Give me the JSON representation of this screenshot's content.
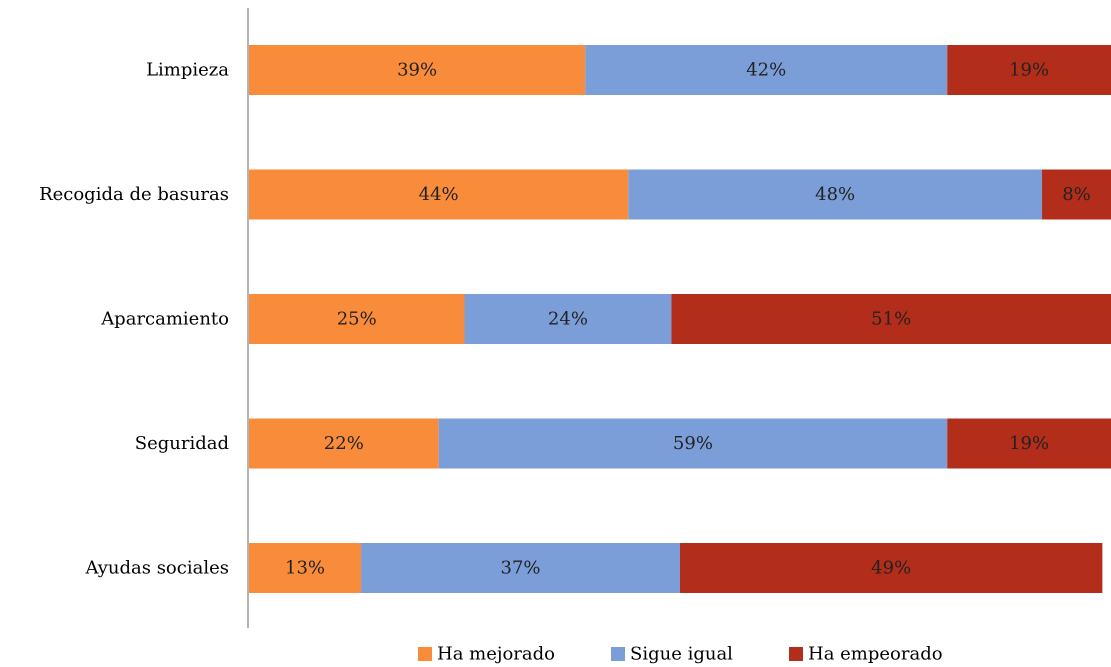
{
  "chart_data": {
    "type": "bar",
    "orientation": "horizontal",
    "stacked": true,
    "percent_stacked": true,
    "categories": [
      "Limpieza",
      "Recogida de basuras",
      "Aparcamiento",
      "Seguridad",
      "Ayudas sociales"
    ],
    "series": [
      {
        "name": "Ha mejorado",
        "color": "#F98C3A",
        "values": [
          39,
          44,
          25,
          22,
          13
        ],
        "labels": [
          "39%",
          "44%",
          "25%",
          "22%",
          "13%"
        ]
      },
      {
        "name": "Sigue igual",
        "color": "#7B9ED9",
        "values": [
          42,
          48,
          24,
          59,
          37
        ],
        "labels": [
          "42%",
          "48%",
          "24%",
          "59%",
          "37%"
        ]
      },
      {
        "name": "Ha empeorado",
        "color": "#B22D1A",
        "values": [
          19,
          8,
          51,
          19,
          49
        ],
        "labels": [
          "19%",
          "8%",
          "51%",
          "19%",
          "49%"
        ]
      }
    ],
    "title": "",
    "xlabel": "",
    "ylabel": "",
    "xlim": [
      0,
      100
    ],
    "grid": false,
    "legend_position": "bottom"
  }
}
